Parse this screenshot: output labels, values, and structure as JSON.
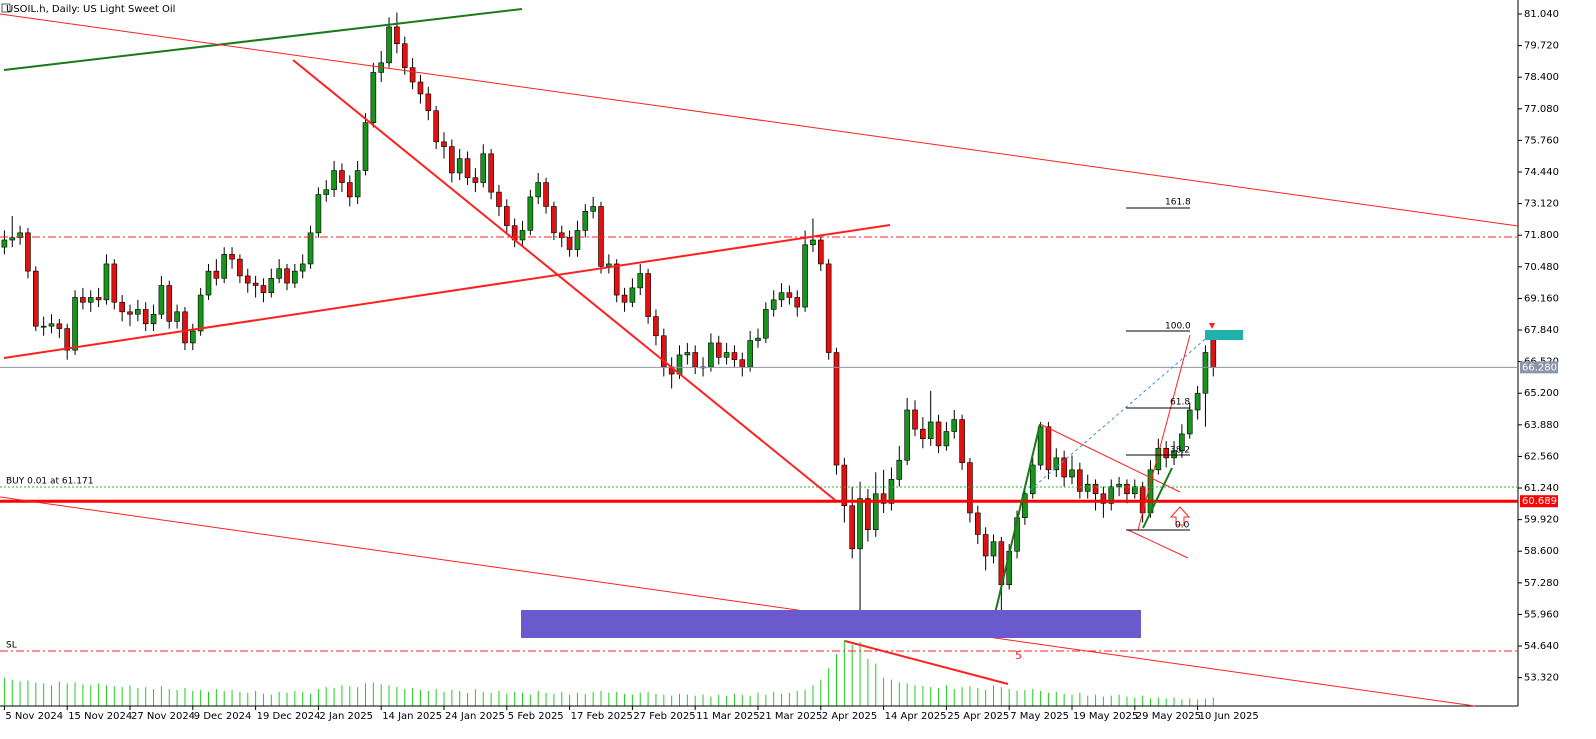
{
  "chart_data": {
    "type": "candlestick",
    "title": "USOIL.h, Daily: US Light Sweet Oil",
    "categories": [
      "5 Nov 2024",
      null,
      null,
      null,
      null,
      null,
      null,
      null,
      "15 Nov 2024",
      null,
      null,
      null,
      null,
      null,
      null,
      null,
      "27 Nov 2024",
      null,
      null,
      null,
      null,
      null,
      null,
      null,
      "9 Dec 2024",
      null,
      null,
      null,
      null,
      null,
      null,
      null,
      "19 Dec 2024",
      null,
      null,
      null,
      null,
      null,
      null,
      null,
      "2 Jan 2025",
      null,
      null,
      null,
      null,
      null,
      null,
      null,
      "14 Jan 2025",
      null,
      null,
      null,
      null,
      null,
      null,
      null,
      "24 Jan 2025",
      null,
      null,
      null,
      null,
      null,
      null,
      null,
      "5 Feb 2025",
      null,
      null,
      null,
      null,
      null,
      null,
      null,
      "17 Feb 2025",
      null,
      null,
      null,
      null,
      null,
      null,
      null,
      "27 Feb 2025",
      null,
      null,
      null,
      null,
      null,
      null,
      null,
      "11 Mar 2025",
      null,
      null,
      null,
      null,
      null,
      null,
      null,
      "21 Mar 2025",
      null,
      null,
      null,
      null,
      null,
      null,
      null,
      "2 Apr 2025",
      null,
      null,
      null,
      null,
      null,
      null,
      null,
      "14 Apr 2025",
      null,
      null,
      null,
      null,
      null,
      null,
      null,
      "25 Apr 2025",
      null,
      null,
      null,
      null,
      null,
      null,
      null,
      "7 May 2025",
      null,
      null,
      null,
      null,
      null,
      null,
      null,
      "19 May 2025",
      null,
      null,
      null,
      null,
      null,
      null,
      null,
      "29 May 2025",
      null,
      null,
      null,
      null,
      null,
      null,
      null,
      "10 Jun 2025",
      null,
      null
    ],
    "open": [
      71.3,
      71.6,
      71.7,
      71.9,
      70.3,
      68.0,
      68.0,
      68.1,
      67.9,
      67.0,
      69.2,
      69.0,
      69.2,
      69.1,
      70.6,
      69.0,
      68.6,
      68.5,
      68.7,
      68.1,
      68.5,
      69.7,
      68.2,
      68.6,
      67.3,
      67.8,
      69.3,
      70.3,
      70.0,
      71.0,
      70.8,
      70.1,
      69.8,
      69.7,
      69.4,
      70.0,
      70.4,
      69.8,
      70.3,
      70.6,
      71.9,
      73.5,
      73.7,
      74.5,
      74.0,
      73.4,
      74.5,
      76.5,
      78.6,
      79.0,
      80.5,
      79.8,
      78.8,
      78.2,
      77.7,
      77.0,
      75.7,
      75.5,
      74.4,
      75.0,
      74.2,
      74.0,
      75.2,
      73.6,
      73.0,
      72.2,
      71.6,
      72.0,
      73.4,
      74.0,
      73.0,
      71.9,
      71.7,
      71.2,
      72.0,
      72.8,
      73.0,
      70.5,
      70.6,
      69.3,
      69.0,
      69.6,
      70.2,
      68.4,
      67.6,
      66.3,
      66.0,
      66.8,
      66.9,
      66.3,
      66.3,
      67.3,
      66.7,
      66.9,
      66.6,
      66.3,
      67.4,
      67.5,
      68.7,
      69.1,
      69.4,
      69.2,
      68.8,
      71.4,
      71.6,
      70.6,
      66.9,
      62.2,
      60.5,
      58.7,
      60.8,
      59.5,
      61.0,
      60.6,
      61.6,
      62.4,
      64.5,
      63.7,
      63.3,
      64.0,
      63.0,
      63.6,
      64.1,
      62.3,
      60.2,
      59.3,
      58.4,
      59.0,
      57.2,
      58.6,
      60.0,
      61.0,
      62.2,
      63.8,
      62.0,
      62.5,
      61.7,
      62.0,
      61.1,
      61.4,
      61.0,
      60.6,
      61.3,
      61.4,
      61.0,
      61.3,
      60.2,
      62.0,
      62.9,
      62.5,
      62.8,
      63.5,
      64.5,
      65.2,
      67.5
    ],
    "high": [
      72.0,
      72.6,
      72.2,
      72.1,
      70.5,
      68.4,
      68.5,
      68.3,
      68.1,
      69.5,
      69.6,
      69.5,
      69.6,
      71.0,
      70.8,
      69.3,
      68.9,
      69.1,
      69.0,
      68.9,
      70.1,
      69.9,
      68.9,
      68.8,
      68.1,
      69.6,
      70.6,
      70.8,
      71.3,
      71.3,
      71.0,
      70.4,
      70.1,
      70.0,
      70.4,
      70.8,
      70.6,
      70.6,
      71.0,
      72.2,
      73.8,
      74.1,
      74.9,
      74.8,
      74.3,
      74.9,
      76.9,
      79.0,
      79.5,
      80.9,
      81.1,
      80.1,
      79.2,
      78.5,
      78.0,
      77.2,
      76.1,
      75.8,
      75.4,
      75.3,
      74.6,
      75.6,
      75.4,
      73.9,
      73.3,
      72.5,
      72.4,
      73.7,
      74.4,
      74.2,
      73.2,
      72.2,
      72.0,
      72.4,
      73.1,
      73.4,
      73.2,
      71.0,
      70.8,
      69.6,
      70.0,
      70.6,
      70.4,
      68.7,
      67.9,
      66.7,
      67.2,
      67.3,
      67.2,
      66.7,
      67.7,
      67.6,
      67.3,
      67.2,
      66.9,
      67.8,
      67.9,
      69.0,
      69.5,
      69.8,
      69.7,
      69.5,
      72.0,
      72.5,
      71.8,
      70.8,
      67.1,
      62.5,
      61.3,
      61.5,
      61.2,
      61.9,
      62.0,
      62.1,
      63.0,
      65.0,
      64.9,
      64.2,
      65.3,
      64.3,
      64.0,
      64.5,
      64.3,
      62.5,
      60.5,
      59.6,
      59.3,
      59.2,
      58.9,
      60.3,
      61.3,
      62.5,
      64.0,
      64.0,
      62.9,
      62.8,
      62.6,
      62.3,
      61.8,
      61.6,
      61.3,
      61.6,
      61.7,
      61.6,
      61.6,
      61.5,
      62.4,
      63.3,
      63.2,
      63.2,
      63.9,
      64.8,
      65.5,
      67.2,
      67.7
    ],
    "low": [
      71.0,
      71.3,
      71.4,
      70.0,
      67.8,
      67.6,
      67.7,
      67.5,
      66.6,
      66.8,
      68.7,
      68.6,
      68.8,
      68.9,
      68.7,
      68.2,
      68.0,
      68.2,
      67.8,
      67.8,
      68.3,
      67.9,
      67.9,
      67.0,
      67.0,
      67.6,
      69.1,
      69.7,
      69.8,
      70.4,
      69.8,
      69.4,
      69.2,
      69.0,
      69.2,
      69.8,
      69.5,
      69.6,
      70.0,
      70.4,
      71.7,
      73.2,
      73.4,
      73.6,
      73.0,
      73.1,
      74.3,
      76.3,
      78.2,
      78.8,
      79.4,
      78.5,
      77.9,
      77.3,
      76.6,
      75.4,
      75.0,
      74.0,
      74.1,
      73.9,
      73.6,
      73.8,
      73.3,
      72.6,
      71.9,
      71.3,
      71.3,
      71.8,
      73.1,
      72.7,
      71.6,
      71.3,
      70.9,
      70.9,
      71.7,
      72.5,
      70.2,
      70.2,
      69.0,
      68.6,
      68.8,
      69.3,
      68.1,
      67.2,
      65.9,
      65.4,
      65.8,
      66.4,
      66.0,
      65.9,
      66.1,
      66.4,
      66.4,
      66.3,
      65.9,
      66.1,
      67.1,
      67.3,
      68.4,
      68.8,
      68.9,
      68.4,
      68.6,
      71.1,
      70.3,
      66.6,
      61.8,
      59.8,
      58.3,
      55.2,
      59.0,
      59.2,
      60.2,
      60.3,
      61.3,
      62.2,
      63.4,
      62.9,
      63.0,
      62.7,
      62.8,
      63.3,
      62.0,
      59.8,
      58.9,
      57.8,
      58.1,
      55.3,
      57.0,
      58.3,
      59.7,
      60.8,
      62.0,
      61.6,
      61.7,
      61.3,
      61.4,
      60.8,
      60.8,
      60.3,
      60.0,
      60.3,
      60.9,
      60.6,
      60.8,
      59.8,
      60.0,
      61.8,
      62.1,
      62.2,
      62.5,
      63.3,
      64.1,
      63.8,
      65.9
    ],
    "close": [
      71.6,
      71.7,
      71.9,
      70.3,
      68.0,
      68.0,
      68.1,
      67.9,
      67.0,
      69.2,
      69.0,
      69.2,
      69.1,
      70.6,
      69.0,
      68.6,
      68.5,
      68.7,
      68.1,
      68.5,
      69.7,
      68.2,
      68.6,
      67.3,
      67.8,
      69.3,
      70.3,
      70.0,
      71.0,
      70.8,
      70.1,
      69.8,
      69.7,
      69.4,
      70.0,
      70.4,
      69.8,
      70.3,
      70.6,
      71.9,
      73.5,
      73.7,
      74.5,
      74.0,
      73.4,
      74.5,
      76.5,
      78.6,
      79.0,
      80.5,
      79.8,
      78.8,
      78.2,
      77.7,
      77.0,
      75.7,
      75.5,
      74.4,
      75.0,
      74.2,
      74.0,
      75.2,
      73.6,
      73.0,
      72.2,
      71.6,
      72.0,
      73.4,
      74.0,
      73.0,
      71.9,
      71.7,
      71.2,
      72.0,
      72.8,
      73.0,
      70.5,
      70.6,
      69.3,
      69.0,
      69.6,
      70.2,
      68.4,
      67.6,
      66.3,
      66.0,
      66.8,
      66.9,
      66.3,
      66.3,
      67.3,
      66.7,
      66.9,
      66.6,
      66.3,
      67.4,
      67.5,
      68.7,
      69.1,
      69.4,
      69.2,
      68.8,
      71.4,
      71.6,
      70.6,
      66.9,
      62.2,
      60.5,
      58.7,
      60.8,
      59.5,
      61.0,
      60.6,
      61.6,
      62.4,
      64.5,
      63.7,
      63.3,
      64.0,
      63.0,
      63.6,
      64.1,
      62.3,
      60.2,
      59.3,
      58.4,
      59.0,
      57.2,
      58.6,
      60.0,
      61.0,
      62.2,
      63.8,
      62.0,
      62.5,
      61.7,
      62.0,
      61.1,
      61.4,
      61.0,
      60.6,
      61.3,
      61.4,
      61.0,
      61.3,
      60.2,
      62.0,
      62.9,
      62.5,
      62.8,
      63.5,
      64.5,
      65.2,
      66.9,
      66.28
    ],
    "volumes": [
      30,
      28,
      26,
      27,
      25,
      24,
      22,
      26,
      24,
      25,
      23,
      22,
      24,
      22,
      21,
      20,
      22,
      19,
      20,
      18,
      21,
      18,
      17,
      19,
      16,
      17,
      15,
      18,
      16,
      17,
      15,
      14,
      16,
      13,
      12,
      15,
      14,
      16,
      15,
      13,
      18,
      20,
      19,
      22,
      21,
      20,
      24,
      25,
      23,
      22,
      20,
      18,
      19,
      17,
      16,
      18,
      15,
      17,
      16,
      14,
      18,
      15,
      14,
      16,
      13,
      15,
      14,
      12,
      16,
      14,
      13,
      15,
      12,
      14,
      13,
      15,
      16,
      14,
      15,
      13,
      12,
      14,
      15,
      13,
      12,
      11,
      13,
      12,
      11,
      12,
      10,
      12,
      11,
      13,
      12,
      11,
      14,
      12,
      15,
      13,
      14,
      16,
      17,
      22,
      28,
      40,
      55,
      70,
      65,
      68,
      50,
      45,
      30,
      28,
      25,
      24,
      22,
      21,
      20,
      19,
      22,
      18,
      20,
      21,
      19,
      17,
      22,
      20,
      18,
      16,
      17,
      18,
      16,
      14,
      15,
      13,
      12,
      14,
      11,
      12,
      10,
      11,
      12,
      10,
      9,
      11,
      8,
      9,
      8,
      9,
      7,
      8,
      7,
      8,
      9
    ],
    "up_color": "#17941b",
    "down_color": "#e31010",
    "volume_color": "#22cc22",
    "ylim": [
      52.135,
      81.625
    ],
    "yticks": [
      {
        "value": 81.04,
        "label": "81.040"
      },
      {
        "value": 79.72,
        "label": "79.720"
      },
      {
        "value": 78.4,
        "label": "78.400"
      },
      {
        "value": 77.08,
        "label": "77.080"
      },
      {
        "value": 75.76,
        "label": "75.760"
      },
      {
        "value": 74.44,
        "label": "74.440"
      },
      {
        "value": 73.12,
        "label": "73.120"
      },
      {
        "value": 71.8,
        "label": "71.800"
      },
      {
        "value": 70.48,
        "label": "70.480"
      },
      {
        "value": 69.16,
        "label": "69.160"
      },
      {
        "value": 67.84,
        "label": "67.840"
      },
      {
        "value": 66.52,
        "label": "66.520"
      },
      {
        "value": 65.2,
        "label": "65.200"
      },
      {
        "value": 63.88,
        "label": "63.880"
      },
      {
        "value": 62.56,
        "label": "62.560"
      },
      {
        "value": 61.24,
        "label": "61.240"
      },
      {
        "value": 59.92,
        "label": "59.920"
      },
      {
        "value": 58.6,
        "label": "58.600"
      },
      {
        "value": 57.28,
        "label": "57.280"
      },
      {
        "value": 55.96,
        "label": "55.960"
      },
      {
        "value": 54.64,
        "label": "54.640"
      },
      {
        "value": 53.32,
        "label": "53.320"
      }
    ],
    "price_markers": [
      {
        "value": 66.28,
        "label": "66.280",
        "color": "#8a96a8"
      },
      {
        "value": 60.689,
        "label": "60.689",
        "color": "#ff0000"
      }
    ],
    "annotations": [
      "BUY 0.01 at 61.171",
      "SL",
      "161.8",
      "100.0",
      "61.8",
      "38.2",
      "0.0",
      "5"
    ]
  }
}
